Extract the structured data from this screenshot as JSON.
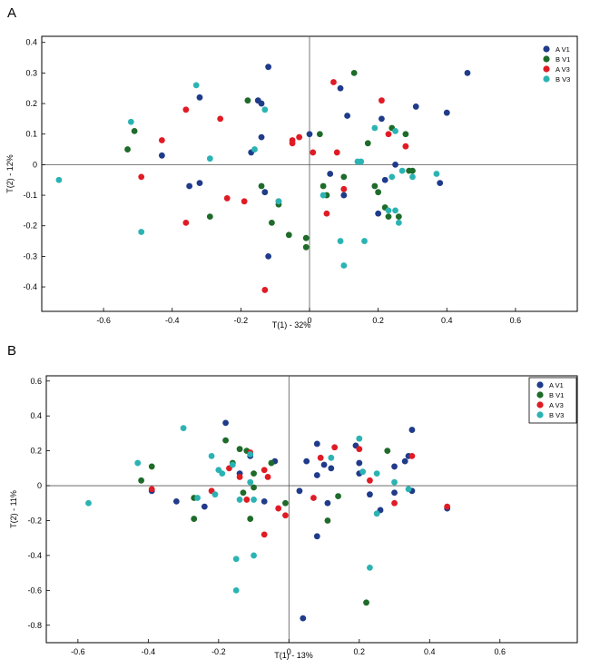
{
  "panels": [
    {
      "letter": "A"
    },
    {
      "letter": "B"
    }
  ],
  "colors": {
    "A V1": "#1f3b8a",
    "B V1": "#1e6b2a",
    "A V3": "#e01b24",
    "B V3": "#2bb3b3"
  },
  "chart_data": [
    {
      "type": "scatter",
      "title": "",
      "xlabel": "T(1) - 32%",
      "ylabel": "T(2) - 12%",
      "xlim": [
        -0.78,
        0.78
      ],
      "ylim": [
        -0.48,
        0.42
      ],
      "xticks": [
        -0.6,
        -0.4,
        -0.2,
        0,
        0.2,
        0.4,
        0.6
      ],
      "yticks": [
        -0.4,
        -0.3,
        -0.2,
        -0.1,
        0,
        0.1,
        0.2,
        0.3,
        0.4
      ],
      "xtick_labels": [
        "-0.6",
        "-0.4",
        "-0.2",
        "0",
        "0.2",
        "0.4",
        "0.6"
      ],
      "ytick_labels": [
        "-0.4",
        "-0.3",
        "-0.2",
        "-0.1",
        "0",
        "0.1",
        "0.2",
        "0.3",
        "0.4"
      ],
      "legend_position": "top-right",
      "series": [
        {
          "name": "A V1",
          "points": [
            [
              -0.43,
              0.03
            ],
            [
              -0.35,
              -0.07
            ],
            [
              -0.32,
              0.22
            ],
            [
              -0.32,
              -0.06
            ],
            [
              -0.17,
              0.04
            ],
            [
              -0.15,
              0.21
            ],
            [
              -0.14,
              0.2
            ],
            [
              -0.14,
              0.09
            ],
            [
              -0.13,
              -0.09
            ],
            [
              -0.12,
              0.32
            ],
            [
              -0.12,
              -0.3
            ],
            [
              0.0,
              0.1
            ],
            [
              0.06,
              -0.03
            ],
            [
              0.09,
              0.25
            ],
            [
              0.1,
              -0.1
            ],
            [
              0.11,
              0.16
            ],
            [
              0.2,
              -0.16
            ],
            [
              0.21,
              0.15
            ],
            [
              0.22,
              -0.05
            ],
            [
              0.25,
              0.0
            ],
            [
              0.31,
              0.19
            ],
            [
              0.38,
              -0.06
            ],
            [
              0.4,
              0.17
            ],
            [
              0.46,
              0.3
            ]
          ]
        },
        {
          "name": "B V1",
          "points": [
            [
              -0.53,
              0.05
            ],
            [
              -0.51,
              0.11
            ],
            [
              -0.29,
              -0.17
            ],
            [
              -0.18,
              0.21
            ],
            [
              -0.14,
              -0.07
            ],
            [
              -0.11,
              -0.19
            ],
            [
              -0.09,
              -0.13
            ],
            [
              -0.06,
              -0.23
            ],
            [
              -0.01,
              -0.24
            ],
            [
              -0.01,
              -0.27
            ],
            [
              0.03,
              0.1
            ],
            [
              0.04,
              -0.07
            ],
            [
              0.05,
              -0.1
            ],
            [
              0.1,
              -0.04
            ],
            [
              0.13,
              0.3
            ],
            [
              0.17,
              0.07
            ],
            [
              0.19,
              -0.07
            ],
            [
              0.2,
              -0.09
            ],
            [
              0.22,
              -0.14
            ],
            [
              0.23,
              -0.17
            ],
            [
              0.24,
              0.12
            ],
            [
              0.26,
              -0.17
            ],
            [
              0.28,
              0.1
            ],
            [
              0.29,
              -0.02
            ],
            [
              0.3,
              -0.02
            ]
          ]
        },
        {
          "name": "A V3",
          "points": [
            [
              -0.49,
              -0.04
            ],
            [
              -0.43,
              0.08
            ],
            [
              -0.36,
              0.18
            ],
            [
              -0.36,
              -0.19
            ],
            [
              -0.26,
              0.15
            ],
            [
              -0.24,
              -0.11
            ],
            [
              -0.19,
              -0.12
            ],
            [
              -0.09,
              -0.12
            ],
            [
              -0.13,
              -0.41
            ],
            [
              -0.05,
              0.08
            ],
            [
              -0.05,
              0.07
            ],
            [
              -0.03,
              0.09
            ],
            [
              0.01,
              0.04
            ],
            [
              0.05,
              -0.16
            ],
            [
              0.07,
              0.27
            ],
            [
              0.08,
              0.04
            ],
            [
              0.1,
              -0.08
            ],
            [
              0.21,
              0.21
            ],
            [
              0.23,
              0.1
            ],
            [
              0.28,
              0.06
            ]
          ]
        },
        {
          "name": "B V3",
          "points": [
            [
              -0.73,
              -0.05
            ],
            [
              -0.52,
              0.14
            ],
            [
              -0.49,
              -0.22
            ],
            [
              -0.33,
              0.26
            ],
            [
              -0.29,
              0.02
            ],
            [
              -0.16,
              0.05
            ],
            [
              -0.13,
              0.18
            ],
            [
              -0.09,
              -0.12
            ],
            [
              0.04,
              -0.1
            ],
            [
              0.09,
              -0.25
            ],
            [
              0.1,
              -0.33
            ],
            [
              0.14,
              0.01
            ],
            [
              0.15,
              0.01
            ],
            [
              0.16,
              -0.25
            ],
            [
              0.19,
              0.12
            ],
            [
              0.23,
              -0.15
            ],
            [
              0.24,
              -0.04
            ],
            [
              0.25,
              -0.15
            ],
            [
              0.25,
              0.11
            ],
            [
              0.26,
              -0.19
            ],
            [
              0.27,
              -0.02
            ],
            [
              0.3,
              -0.04
            ],
            [
              0.37,
              -0.03
            ]
          ]
        }
      ]
    },
    {
      "type": "scatter",
      "title": "",
      "xlabel": "T(1) - 13%",
      "ylabel": "T(2) - 11%",
      "xlim": [
        -0.69,
        0.82
      ],
      "ylim": [
        -0.9,
        0.63
      ],
      "xticks": [
        -0.6,
        -0.4,
        -0.2,
        0,
        0.2,
        0.4,
        0.6
      ],
      "yticks": [
        -0.8,
        -0.6,
        -0.4,
        -0.2,
        0,
        0.2,
        0.4,
        0.6
      ],
      "xtick_labels": [
        "-0.6",
        "-0.4",
        "-0.2",
        "0",
        "0.2",
        "0.4",
        "0.6"
      ],
      "ytick_labels": [
        "-0.8",
        "-0.6",
        "-0.4",
        "-0.2",
        "0",
        "0.2",
        "0.4",
        "0.6"
      ],
      "legend_position": "top-right",
      "series": [
        {
          "name": "A V1",
          "points": [
            [
              -0.39,
              -0.03
            ],
            [
              -0.32,
              -0.09
            ],
            [
              -0.24,
              -0.12
            ],
            [
              -0.18,
              0.36
            ],
            [
              -0.14,
              0.07
            ],
            [
              -0.11,
              0.17
            ],
            [
              -0.07,
              -0.09
            ],
            [
              -0.04,
              0.14
            ],
            [
              0.03,
              -0.03
            ],
            [
              0.04,
              -0.76
            ],
            [
              0.05,
              0.14
            ],
            [
              0.08,
              0.06
            ],
            [
              0.08,
              0.24
            ],
            [
              0.1,
              0.12
            ],
            [
              0.11,
              -0.1
            ],
            [
              0.12,
              0.1
            ],
            [
              0.08,
              -0.29
            ],
            [
              0.19,
              0.23
            ],
            [
              0.2,
              0.13
            ],
            [
              0.2,
              0.07
            ],
            [
              0.23,
              -0.05
            ],
            [
              0.26,
              -0.14
            ],
            [
              0.3,
              -0.04
            ],
            [
              0.3,
              0.11
            ],
            [
              0.33,
              0.14
            ],
            [
              0.34,
              0.17
            ],
            [
              0.35,
              -0.03
            ],
            [
              0.35,
              0.32
            ],
            [
              0.45,
              -0.13
            ]
          ]
        },
        {
          "name": "B V1",
          "points": [
            [
              -0.42,
              0.03
            ],
            [
              -0.39,
              0.11
            ],
            [
              -0.27,
              -0.07
            ],
            [
              -0.27,
              -0.19
            ],
            [
              -0.18,
              0.26
            ],
            [
              -0.16,
              0.13
            ],
            [
              -0.14,
              0.21
            ],
            [
              -0.12,
              0.2
            ],
            [
              -0.13,
              -0.04
            ],
            [
              -0.11,
              -0.19
            ],
            [
              -0.1,
              0.07
            ],
            [
              -0.1,
              -0.01
            ],
            [
              -0.05,
              0.13
            ],
            [
              -0.01,
              -0.1
            ],
            [
              0.11,
              -0.2
            ],
            [
              0.14,
              -0.06
            ],
            [
              0.28,
              0.2
            ],
            [
              0.22,
              -0.67
            ]
          ]
        },
        {
          "name": "A V3",
          "points": [
            [
              -0.39,
              -0.02
            ],
            [
              -0.22,
              -0.03
            ],
            [
              -0.17,
              0.1
            ],
            [
              -0.14,
              0.05
            ],
            [
              -0.11,
              0.19
            ],
            [
              -0.12,
              -0.08
            ],
            [
              -0.07,
              0.09
            ],
            [
              -0.06,
              0.05
            ],
            [
              -0.07,
              -0.28
            ],
            [
              -0.03,
              -0.13
            ],
            [
              -0.01,
              -0.17
            ],
            [
              0.07,
              -0.07
            ],
            [
              0.09,
              0.16
            ],
            [
              0.13,
              0.22
            ],
            [
              0.2,
              0.21
            ],
            [
              0.23,
              0.03
            ],
            [
              0.3,
              -0.1
            ],
            [
              0.35,
              0.17
            ],
            [
              0.45,
              -0.12
            ]
          ]
        },
        {
          "name": "B V3",
          "points": [
            [
              -0.57,
              -0.1
            ],
            [
              -0.43,
              0.13
            ],
            [
              -0.3,
              0.33
            ],
            [
              -0.26,
              -0.07
            ],
            [
              -0.22,
              0.17
            ],
            [
              -0.21,
              -0.05
            ],
            [
              -0.2,
              0.09
            ],
            [
              -0.19,
              0.07
            ],
            [
              -0.16,
              0.12
            ],
            [
              -0.15,
              -0.42
            ],
            [
              -0.14,
              -0.08
            ],
            [
              -0.15,
              -0.6
            ],
            [
              -0.11,
              0.18
            ],
            [
              -0.11,
              0.02
            ],
            [
              -0.1,
              -0.08
            ],
            [
              -0.1,
              -0.4
            ],
            [
              0.12,
              0.16
            ],
            [
              0.2,
              0.27
            ],
            [
              0.21,
              0.08
            ],
            [
              0.23,
              -0.47
            ],
            [
              0.25,
              0.07
            ],
            [
              0.25,
              -0.16
            ],
            [
              0.3,
              0.02
            ],
            [
              0.34,
              -0.02
            ]
          ]
        }
      ]
    }
  ]
}
